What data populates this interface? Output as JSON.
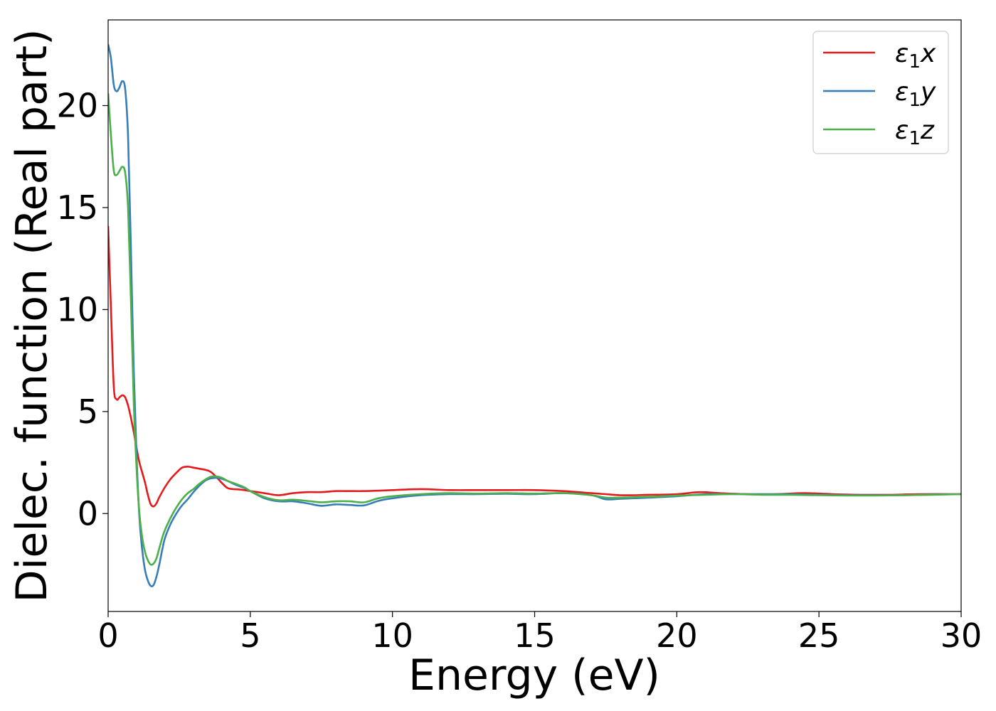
{
  "chart_data": {
    "type": "line",
    "title": "",
    "xlabel": "Energy (eV)",
    "ylabel": "Dielec. function (Real part)",
    "xlim": [
      0,
      30
    ],
    "ylim": [
      -4.8,
      24.2
    ],
    "xticks": [
      0,
      5,
      10,
      15,
      20,
      25,
      30
    ],
    "yticks": [
      0,
      5,
      10,
      15,
      20
    ],
    "grid": false,
    "legend_position": "top-right",
    "series": [
      {
        "name": "ε₁x",
        "legend_base": "ε",
        "legend_sub": "1",
        "legend_tail": "x",
        "color": "#e41a1c",
        "x": [
          0,
          0.1,
          0.2,
          0.3,
          0.4,
          0.5,
          0.6,
          0.7,
          0.8,
          0.9,
          1.0,
          1.1,
          1.2,
          1.3,
          1.4,
          1.5,
          1.6,
          1.7,
          1.8,
          2.0,
          2.2,
          2.4,
          2.6,
          2.8,
          3.0,
          3.2,
          3.4,
          3.6,
          3.8,
          4.0,
          4.2,
          4.4,
          4.6,
          4.8,
          5.0,
          5.5,
          6.0,
          6.5,
          7.0,
          7.5,
          8.0,
          8.5,
          9.0,
          9.5,
          10.0,
          11.0,
          12.0,
          13.0,
          14.0,
          15.0,
          16.0,
          17.0,
          17.5,
          18.0,
          18.5,
          19.0,
          20.0,
          20.8,
          21.5,
          22.5,
          23.5,
          24.5,
          25.5,
          26.5,
          27.5,
          28.5,
          30.0
        ],
        "y": [
          14.1,
          10.0,
          6.2,
          5.6,
          5.7,
          5.8,
          5.7,
          5.3,
          4.7,
          4.0,
          3.2,
          2.5,
          2.0,
          1.5,
          0.9,
          0.45,
          0.35,
          0.5,
          0.8,
          1.3,
          1.7,
          2.0,
          2.25,
          2.3,
          2.25,
          2.2,
          2.15,
          2.05,
          1.8,
          1.5,
          1.25,
          1.2,
          1.18,
          1.15,
          1.1,
          1.0,
          0.9,
          1.0,
          1.05,
          1.05,
          1.1,
          1.1,
          1.1,
          1.12,
          1.15,
          1.2,
          1.15,
          1.15,
          1.15,
          1.15,
          1.1,
          1.0,
          0.95,
          0.9,
          0.9,
          0.92,
          0.95,
          1.05,
          1.0,
          0.95,
          0.95,
          1.0,
          0.95,
          0.92,
          0.92,
          0.95,
          0.95
        ]
      },
      {
        "name": "ε₁y",
        "legend_base": "ε",
        "legend_sub": "1",
        "legend_tail": "y",
        "color": "#377eb8",
        "x": [
          0,
          0.1,
          0.2,
          0.3,
          0.4,
          0.5,
          0.6,
          0.7,
          0.8,
          0.9,
          1.0,
          1.1,
          1.2,
          1.3,
          1.4,
          1.5,
          1.6,
          1.7,
          1.8,
          1.9,
          2.0,
          2.2,
          2.4,
          2.6,
          2.8,
          3.0,
          3.2,
          3.4,
          3.6,
          3.8,
          4.0,
          4.2,
          4.5,
          4.8,
          5.0,
          5.5,
          6.0,
          6.5,
          7.0,
          7.5,
          8.0,
          8.5,
          9.0,
          9.5,
          10.0,
          11.0,
          12.0,
          13.0,
          14.0,
          15.0,
          16.0,
          17.0,
          17.5,
          18.0,
          19.0,
          20.0,
          21.0,
          22.0,
          23.0,
          24.0,
          25.0,
          26.0,
          27.0,
          28.0,
          29.0,
          30.0
        ],
        "y": [
          23.0,
          22.3,
          21.0,
          20.7,
          20.9,
          21.2,
          20.8,
          18.5,
          13.0,
          7.0,
          2.8,
          -0.2,
          -1.8,
          -2.8,
          -3.3,
          -3.55,
          -3.5,
          -3.1,
          -2.5,
          -1.8,
          -1.2,
          -0.5,
          0.0,
          0.4,
          0.7,
          1.05,
          1.35,
          1.6,
          1.72,
          1.75,
          1.7,
          1.6,
          1.4,
          1.25,
          1.1,
          0.75,
          0.6,
          0.6,
          0.5,
          0.38,
          0.45,
          0.42,
          0.4,
          0.62,
          0.75,
          0.9,
          0.95,
          0.95,
          0.97,
          0.95,
          1.0,
          0.9,
          0.7,
          0.72,
          0.78,
          0.85,
          0.95,
          0.95,
          0.95,
          0.95,
          0.92,
          0.9,
          0.9,
          0.9,
          0.93,
          0.95
        ]
      },
      {
        "name": "ε₁z",
        "legend_base": "ε",
        "legend_sub": "1",
        "legend_tail": "z",
        "color": "#4daf4a",
        "x": [
          0,
          0.1,
          0.2,
          0.3,
          0.4,
          0.5,
          0.6,
          0.7,
          0.8,
          0.9,
          1.0,
          1.1,
          1.2,
          1.3,
          1.4,
          1.5,
          1.6,
          1.7,
          1.8,
          1.9,
          2.0,
          2.2,
          2.4,
          2.6,
          2.8,
          3.0,
          3.2,
          3.4,
          3.6,
          3.8,
          4.0,
          4.2,
          4.5,
          4.8,
          5.0,
          5.5,
          6.0,
          6.5,
          7.0,
          7.5,
          8.0,
          8.5,
          9.0,
          9.5,
          10.0,
          11.0,
          12.0,
          13.0,
          14.0,
          15.0,
          16.0,
          17.0,
          17.5,
          18.0,
          19.0,
          20.0,
          21.0,
          22.0,
          23.0,
          24.0,
          25.0,
          26.0,
          27.0,
          28.0,
          29.0,
          30.0
        ],
        "y": [
          20.6,
          18.5,
          16.8,
          16.6,
          16.8,
          17.0,
          16.7,
          15.0,
          10.5,
          5.5,
          2.2,
          0.0,
          -1.2,
          -1.9,
          -2.3,
          -2.5,
          -2.45,
          -2.2,
          -1.7,
          -1.2,
          -0.8,
          -0.2,
          0.3,
          0.7,
          1.0,
          1.2,
          1.45,
          1.65,
          1.8,
          1.82,
          1.75,
          1.6,
          1.45,
          1.28,
          1.1,
          0.8,
          0.65,
          0.68,
          0.62,
          0.55,
          0.6,
          0.6,
          0.55,
          0.75,
          0.85,
          0.95,
          1.0,
          0.98,
          1.0,
          0.98,
          1.0,
          0.9,
          0.78,
          0.78,
          0.82,
          0.88,
          0.92,
          0.95,
          0.92,
          0.92,
          0.9,
          0.88,
          0.88,
          0.9,
          0.92,
          0.95
        ]
      }
    ]
  }
}
